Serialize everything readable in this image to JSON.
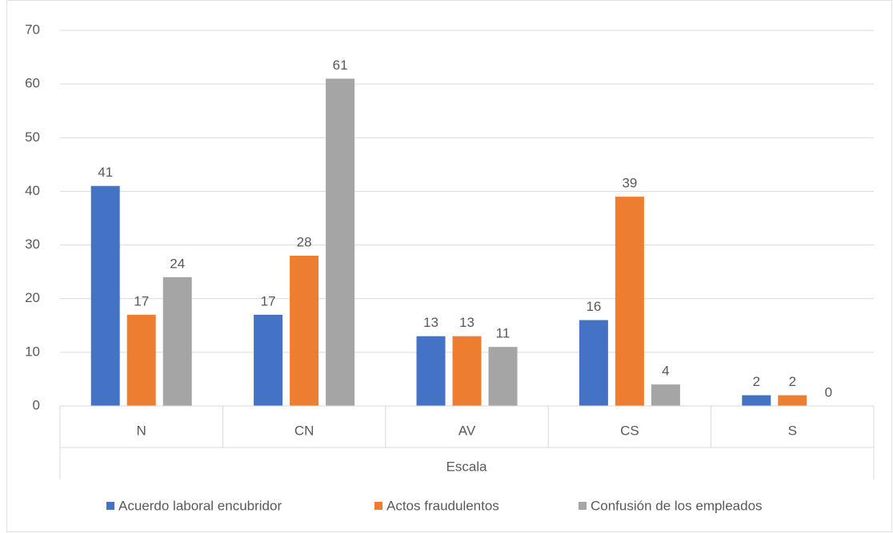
{
  "chart_data": {
    "type": "bar",
    "x_label": "Escala",
    "categories": [
      "N",
      "CN",
      "AV",
      "CS",
      "S"
    ],
    "series": [
      {
        "name": "Acuerdo laboral encubridor",
        "color": "#4472c4",
        "values": [
          41,
          17,
          13,
          16,
          2
        ]
      },
      {
        "name": "Actos fraudulentos",
        "color": "#ed7d31",
        "values": [
          17,
          28,
          13,
          39,
          2
        ]
      },
      {
        "name": "Confusión de los empleados",
        "color": "#a5a5a5",
        "values": [
          24,
          61,
          11,
          4,
          0
        ]
      }
    ],
    "ylim": [
      0,
      70
    ],
    "yticks": [
      0,
      10,
      20,
      30,
      40,
      50,
      60,
      70
    ],
    "grid": true,
    "legend": "bottom"
  }
}
